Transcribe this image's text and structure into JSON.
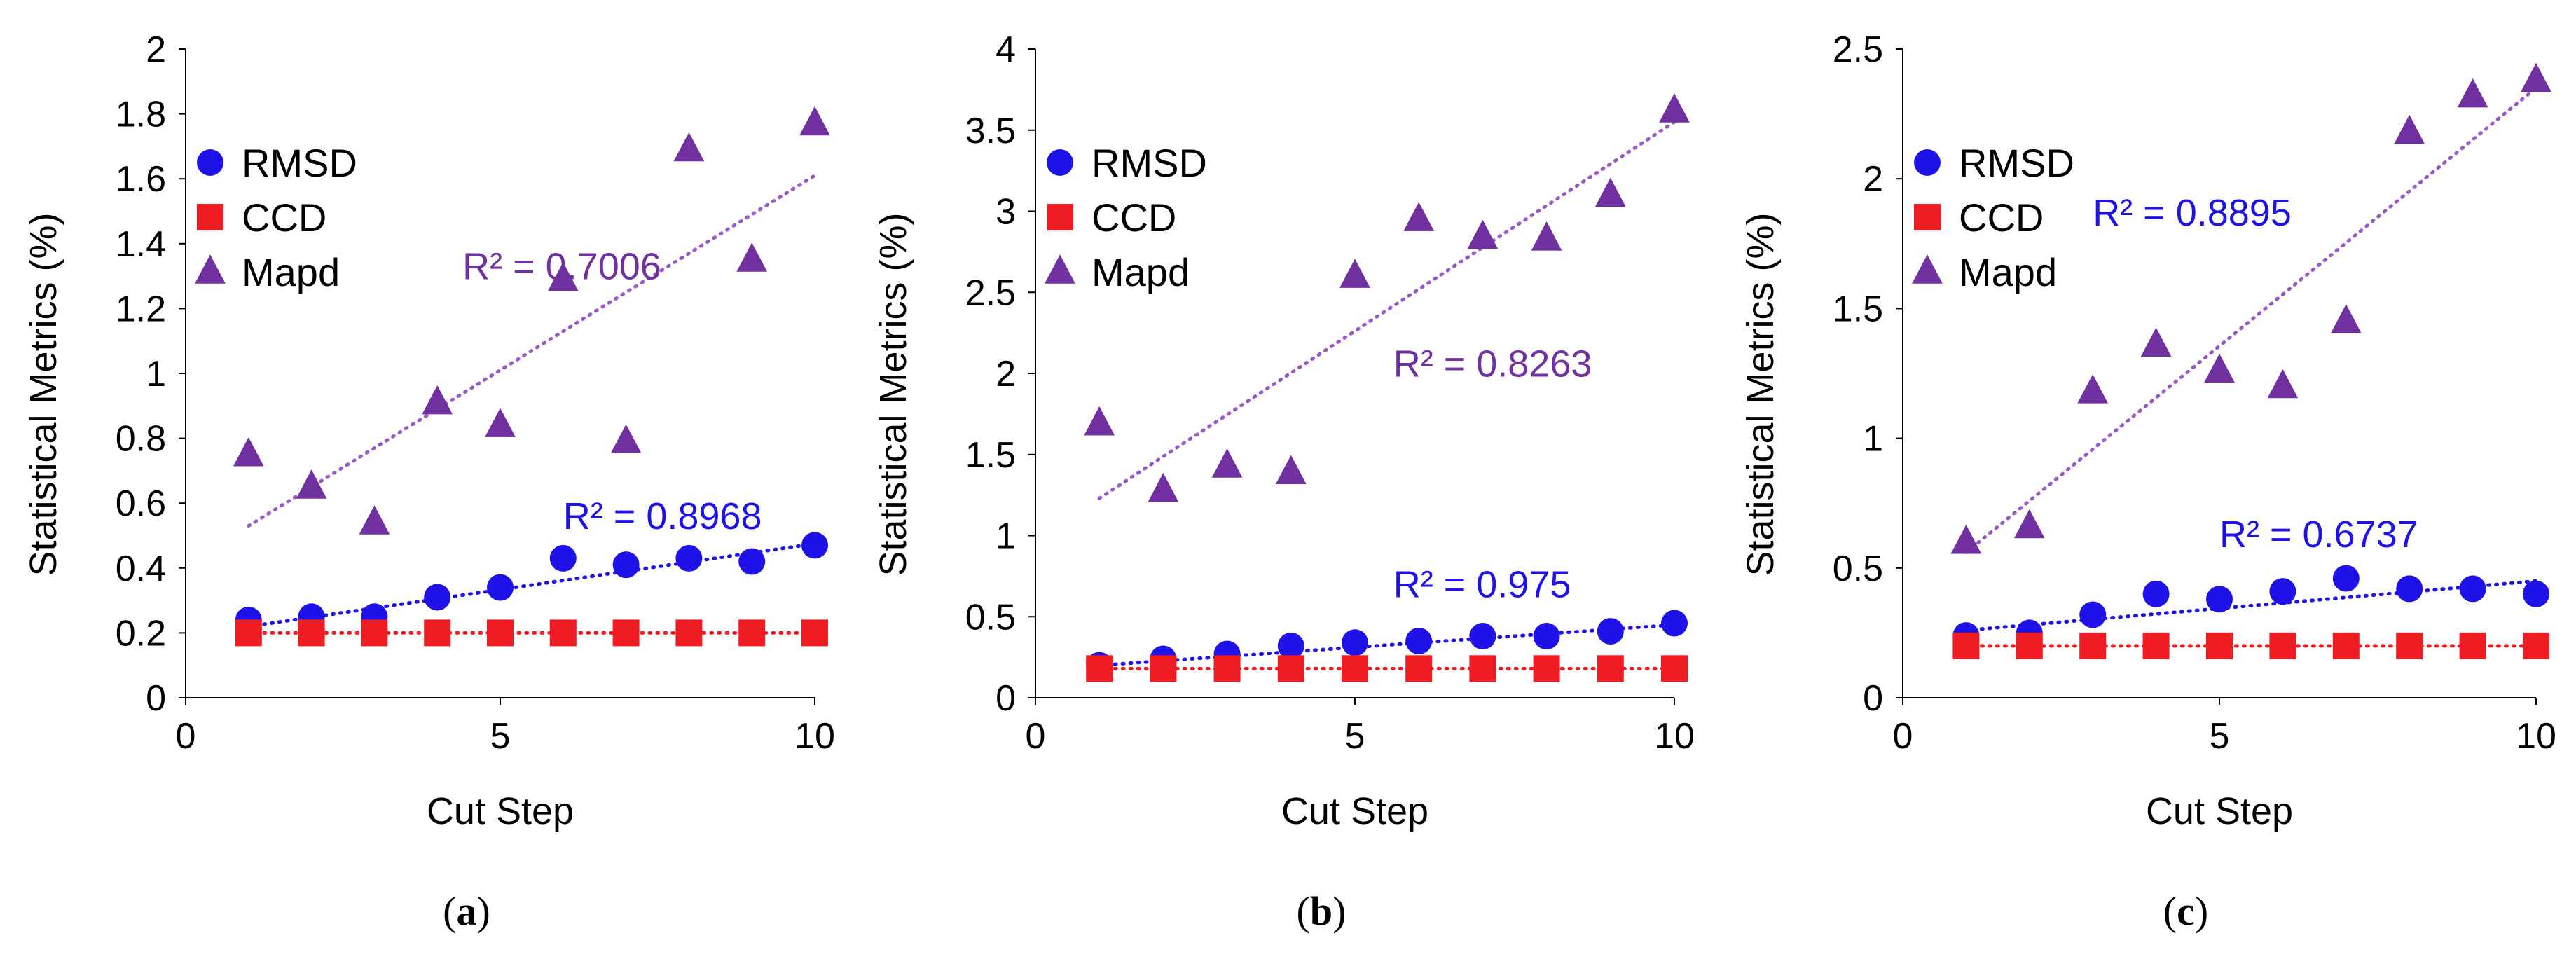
{
  "colors": {
    "rmsd": "#1F12E8",
    "ccd": "#EF1C24",
    "mapd": "#7030A0",
    "r2_mapd_a": "#7030A0",
    "r2_rmsd_a": "#1F12E8",
    "r2_mapd_b": "#7030A0",
    "r2_rmsd_b": "#1F12E8",
    "r2_mapd_c": "#1F12E8",
    "r2_rmsd_c": "#1F12E8"
  },
  "chart_data": [
    {
      "type": "scatter",
      "panel": "a",
      "panel_label_open": "(",
      "panel_label_letter": "a",
      "panel_label_close": ")",
      "xlabel": "Cut Step",
      "ylabel": "Statistical Metrics (%)",
      "xlim": [
        0,
        10
      ],
      "ylim": [
        0,
        2
      ],
      "xticks": [
        0,
        5,
        10
      ],
      "xtick_labels": [
        "0",
        "5",
        "10"
      ],
      "yticks": [
        0,
        0.2,
        0.4,
        0.6,
        0.8,
        1,
        1.2,
        1.4,
        1.6,
        1.8,
        2
      ],
      "ytick_labels": [
        "0",
        "0.2",
        "0.4",
        "0.6",
        "0.8",
        "1",
        "1.2",
        "1.4",
        "1.6",
        "1.8",
        "2"
      ],
      "legend_position": "top-left",
      "x": [
        1,
        2,
        3,
        4,
        5,
        6,
        7,
        8,
        9,
        10
      ],
      "series": [
        {
          "name": "RMSD",
          "marker": "circle",
          "values": [
            0.24,
            0.25,
            0.25,
            0.31,
            0.34,
            0.43,
            0.41,
            0.43,
            0.42,
            0.47
          ],
          "trend": [
            0.22,
            0.475
          ]
        },
        {
          "name": "CCD",
          "marker": "square",
          "values": [
            0.2,
            0.2,
            0.2,
            0.2,
            0.2,
            0.2,
            0.2,
            0.2,
            0.2,
            0.2
          ],
          "trend": [
            0.2,
            0.2
          ]
        },
        {
          "name": "Mapd",
          "marker": "triangle",
          "values": [
            0.75,
            0.65,
            0.54,
            0.91,
            0.84,
            1.29,
            0.79,
            1.69,
            1.35,
            1.77
          ],
          "trend": [
            0.53,
            1.61
          ]
        }
      ],
      "annotations": [
        {
          "text": "R² = 0.7006",
          "x": 4.4,
          "y": 1.29,
          "color_key": "r2_mapd_a"
        },
        {
          "text": "R² = 0.8968",
          "x": 6.0,
          "y": 0.52,
          "color_key": "r2_rmsd_a"
        }
      ]
    },
    {
      "type": "scatter",
      "panel": "b",
      "panel_label_open": "(",
      "panel_label_letter": "b",
      "panel_label_close": ")",
      "xlabel": "Cut Step",
      "ylabel": "Statistical Metrics (%)",
      "xlim": [
        0,
        10
      ],
      "ylim": [
        0,
        4
      ],
      "xticks": [
        0,
        5,
        10
      ],
      "xtick_labels": [
        "0",
        "5",
        "10"
      ],
      "yticks": [
        0,
        0.5,
        1,
        1.5,
        2,
        2.5,
        3,
        3.5,
        4
      ],
      "ytick_labels": [
        "0",
        "0.5",
        "1",
        "1.5",
        "2",
        "2.5",
        "3",
        "3.5",
        "4"
      ],
      "legend_position": "top-left",
      "x": [
        1,
        2,
        3,
        4,
        5,
        6,
        7,
        8,
        9,
        10
      ],
      "series": [
        {
          "name": "RMSD",
          "marker": "circle",
          "values": [
            0.2,
            0.24,
            0.27,
            0.32,
            0.34,
            0.35,
            0.38,
            0.38,
            0.41,
            0.46
          ],
          "trend": [
            0.2,
            0.45
          ]
        },
        {
          "name": "CCD",
          "marker": "square",
          "values": [
            0.18,
            0.18,
            0.18,
            0.18,
            0.18,
            0.18,
            0.18,
            0.18,
            0.18,
            0.18
          ],
          "trend": [
            0.18,
            0.18
          ]
        },
        {
          "name": "Mapd",
          "marker": "triangle",
          "values": [
            1.69,
            1.28,
            1.43,
            1.39,
            2.6,
            2.95,
            2.84,
            2.83,
            3.1,
            3.62
          ],
          "trend": [
            1.23,
            3.55
          ]
        }
      ],
      "annotations": [
        {
          "text": "R² = 0.8263",
          "x": 5.6,
          "y": 1.98,
          "color_key": "r2_mapd_b"
        },
        {
          "text": "R² = 0.975",
          "x": 5.6,
          "y": 0.62,
          "color_key": "r2_rmsd_b"
        }
      ]
    },
    {
      "type": "scatter",
      "panel": "c",
      "panel_label_open": "(",
      "panel_label_letter": "c",
      "panel_label_close": ")",
      "xlabel": "Cut Step",
      "ylabel": "Statistical Metrics (%)",
      "xlim": [
        0,
        10
      ],
      "ylim": [
        0,
        2.5
      ],
      "xticks": [
        0,
        5,
        10
      ],
      "xtick_labels": [
        "0",
        "5",
        "10"
      ],
      "yticks": [
        0,
        0.5,
        1,
        1.5,
        2,
        2.5
      ],
      "ytick_labels": [
        "0",
        "0.5",
        "1",
        "1.5",
        "2",
        "2.5"
      ],
      "legend_position": "top-left",
      "x": [
        1,
        2,
        3,
        4,
        5,
        6,
        7,
        8,
        9,
        10
      ],
      "series": [
        {
          "name": "RMSD",
          "marker": "circle",
          "values": [
            0.24,
            0.25,
            0.32,
            0.4,
            0.38,
            0.41,
            0.46,
            0.42,
            0.42,
            0.4
          ],
          "trend": [
            0.26,
            0.45
          ]
        },
        {
          "name": "CCD",
          "marker": "square",
          "values": [
            0.2,
            0.2,
            0.2,
            0.2,
            0.2,
            0.2,
            0.2,
            0.2,
            0.2,
            0.2
          ],
          "trend": [
            0.2,
            0.2
          ]
        },
        {
          "name": "Mapd",
          "marker": "triangle",
          "values": [
            0.6,
            0.66,
            1.18,
            1.36,
            1.26,
            1.2,
            1.45,
            2.18,
            2.32,
            2.38
          ],
          "trend": [
            0.56,
            2.35
          ]
        }
      ],
      "annotations": [
        {
          "text": "R² = 0.8895",
          "x": 3.0,
          "y": 1.82,
          "color_key": "r2_mapd_c"
        },
        {
          "text": "R² = 0.6737",
          "x": 5.0,
          "y": 0.58,
          "color_key": "r2_rmsd_c"
        }
      ]
    }
  ]
}
